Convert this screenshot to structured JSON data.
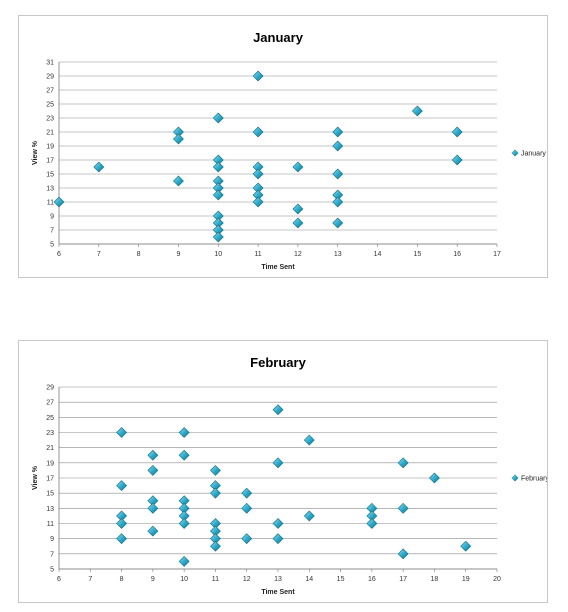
{
  "chart_data": [
    {
      "type": "scatter",
      "title": "January",
      "xlabel": "Time Sent",
      "ylabel": "View %",
      "xlim": [
        6,
        17
      ],
      "ylim": [
        5,
        31
      ],
      "xticks": [
        6,
        7,
        8,
        9,
        10,
        11,
        12,
        13,
        14,
        15,
        16,
        17
      ],
      "yticks": [
        5,
        7,
        9,
        11,
        13,
        15,
        17,
        19,
        21,
        23,
        25,
        27,
        29,
        31
      ],
      "grid": "horizontal",
      "legend": "right",
      "marker_color": "#2aa6c6",
      "series": [
        {
          "name": "January",
          "points": [
            [
              6,
              11
            ],
            [
              7,
              16
            ],
            [
              9,
              21
            ],
            [
              9,
              20
            ],
            [
              9,
              14
            ],
            [
              10,
              23
            ],
            [
              10,
              17
            ],
            [
              10,
              16
            ],
            [
              10,
              14
            ],
            [
              10,
              13
            ],
            [
              10,
              12
            ],
            [
              10,
              9
            ],
            [
              10,
              8
            ],
            [
              10,
              7
            ],
            [
              10,
              6
            ],
            [
              11,
              29
            ],
            [
              11,
              21
            ],
            [
              11,
              16
            ],
            [
              11,
              15
            ],
            [
              11,
              13
            ],
            [
              11,
              12
            ],
            [
              11,
              11
            ],
            [
              12,
              16
            ],
            [
              12,
              10
            ],
            [
              12,
              8
            ],
            [
              13,
              21
            ],
            [
              13,
              19
            ],
            [
              13,
              15
            ],
            [
              13,
              12
            ],
            [
              13,
              11
            ],
            [
              13,
              8
            ],
            [
              15,
              24
            ],
            [
              16,
              21
            ],
            [
              16,
              17
            ]
          ]
        }
      ]
    },
    {
      "type": "scatter",
      "title": "February",
      "xlabel": "Time Sent",
      "ylabel": "View %",
      "xlim": [
        6,
        20
      ],
      "ylim": [
        5,
        29
      ],
      "xticks": [
        6,
        7,
        8,
        9,
        10,
        11,
        12,
        13,
        14,
        15,
        16,
        17,
        18,
        19,
        20
      ],
      "yticks": [
        5,
        7,
        9,
        11,
        13,
        15,
        17,
        19,
        21,
        23,
        25,
        27,
        29
      ],
      "grid": "horizontal",
      "legend": "right",
      "marker_color": "#2aa6c6",
      "series": [
        {
          "name": "February",
          "points": [
            [
              8,
              23
            ],
            [
              8,
              16
            ],
            [
              8,
              12
            ],
            [
              8,
              11
            ],
            [
              8,
              9
            ],
            [
              9,
              20
            ],
            [
              9,
              18
            ],
            [
              9,
              14
            ],
            [
              9,
              13
            ],
            [
              9,
              10
            ],
            [
              10,
              23
            ],
            [
              10,
              20
            ],
            [
              10,
              14
            ],
            [
              10,
              13
            ],
            [
              10,
              12
            ],
            [
              10,
              11
            ],
            [
              10,
              6
            ],
            [
              11,
              18
            ],
            [
              11,
              16
            ],
            [
              11,
              15
            ],
            [
              11,
              11
            ],
            [
              11,
              10
            ],
            [
              11,
              9
            ],
            [
              11,
              8
            ],
            [
              12,
              15
            ],
            [
              12,
              13
            ],
            [
              12,
              9
            ],
            [
              13,
              26
            ],
            [
              13,
              19
            ],
            [
              13,
              11
            ],
            [
              13,
              9
            ],
            [
              14,
              22
            ],
            [
              14,
              12
            ],
            [
              16,
              13
            ],
            [
              16,
              12
            ],
            [
              16,
              11
            ],
            [
              17,
              19
            ],
            [
              17,
              13
            ],
            [
              17,
              7
            ],
            [
              18,
              17
            ],
            [
              19,
              8
            ]
          ]
        }
      ]
    }
  ]
}
